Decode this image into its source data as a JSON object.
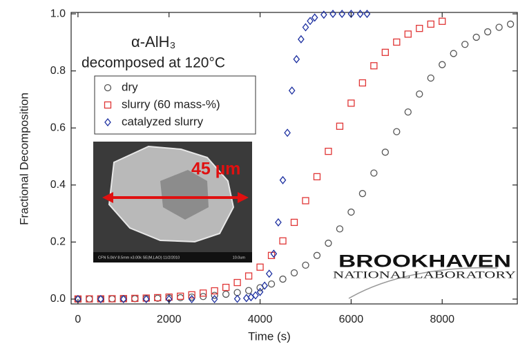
{
  "chart_data": {
    "type": "scatter",
    "x_label": "Time (s)",
    "y_label": "Fractional Decomposition",
    "annotations": [
      "α-AlH₃",
      "decomposed at 120°C"
    ],
    "xlim": [
      -150,
      9650
    ],
    "ylim": [
      -0.017,
      1.005
    ],
    "xticks": [
      0,
      2000,
      4000,
      6000,
      8000
    ],
    "yticks": [
      {
        "value": 0,
        "label": "0.0"
      },
      0.2,
      0.4,
      0.6,
      0.8,
      {
        "value": 1,
        "label": "1.0"
      }
    ],
    "series": [
      {
        "name": "dry",
        "color": "#555555",
        "marker": "circle",
        "x": [
          0,
          250,
          500,
          750,
          1000,
          1250,
          1500,
          1750,
          2000,
          2250,
          2500,
          2750,
          3000,
          3250,
          3500,
          3750,
          4000,
          4250,
          4500,
          4750,
          5000,
          5250,
          5500,
          5750,
          6000,
          6250,
          6500,
          6750,
          7000,
          7250,
          7500,
          7750,
          8000,
          8250,
          8500,
          8750,
          9000,
          9250,
          9500
        ],
        "values": [
          0.0004,
          0.0005,
          0.0007,
          0.0009,
          0.0012,
          0.0016,
          0.0022,
          0.003,
          0.004,
          0.005,
          0.007,
          0.009,
          0.013,
          0.017,
          0.023,
          0.03,
          0.04,
          0.053,
          0.07,
          0.092,
          0.119,
          0.153,
          0.196,
          0.246,
          0.305,
          0.37,
          0.442,
          0.515,
          0.587,
          0.656,
          0.719,
          0.775,
          0.822,
          0.861,
          0.893,
          0.918,
          0.937,
          0.953,
          0.964
        ]
      },
      {
        "name": "slurry (60 mass-%)",
        "color": "#e03535",
        "marker": "square",
        "x": [
          0,
          250,
          500,
          750,
          1000,
          1250,
          1500,
          1750,
          2000,
          2250,
          2500,
          2750,
          3000,
          3250,
          3500,
          3750,
          4000,
          4250,
          4500,
          4750,
          5000,
          5250,
          5500,
          5750,
          6000,
          6250,
          6500,
          6750,
          7000,
          7250,
          7500,
          7750,
          8000
        ],
        "values": [
          0.0004,
          0.0006,
          0.0008,
          0.0012,
          0.0017,
          0.0025,
          0.0035,
          0.005,
          0.007,
          0.01,
          0.015,
          0.021,
          0.029,
          0.041,
          0.058,
          0.081,
          0.112,
          0.153,
          0.204,
          0.269,
          0.345,
          0.429,
          0.518,
          0.606,
          0.687,
          0.758,
          0.818,
          0.865,
          0.901,
          0.929,
          0.949,
          0.964,
          0.974
        ]
      },
      {
        "name": "catalyzed slurry",
        "color": "#1c2fa0",
        "marker": "diamond",
        "x": [
          0,
          500,
          1000,
          1500,
          2000,
          2500,
          3000,
          3500,
          3700,
          3800,
          3900,
          4000,
          4100,
          4200,
          4300,
          4400,
          4500,
          4600,
          4700,
          4800,
          4900,
          5000,
          5100,
          5200,
          5400,
          5600,
          5800,
          6000,
          6200,
          6350
        ],
        "values": [
          0,
          0,
          0,
          0,
          0,
          0,
          0,
          0.0009,
          0.0034,
          0.0067,
          0.013,
          0.025,
          0.047,
          0.089,
          0.159,
          0.269,
          0.417,
          0.583,
          0.731,
          0.841,
          0.911,
          0.953,
          0.975,
          0.987,
          0.997,
          1,
          1,
          1,
          1,
          1
        ]
      }
    ],
    "inset": {
      "label": "45 µm",
      "caption": "CFN 5.0kV 8.5mm x3.00k SE(M,LAO) 11/2/2010",
      "scale": "10.0um"
    },
    "logo": {
      "name": "BROOKHAVEN",
      "sub": "NATIONAL LABORATORY"
    }
  }
}
